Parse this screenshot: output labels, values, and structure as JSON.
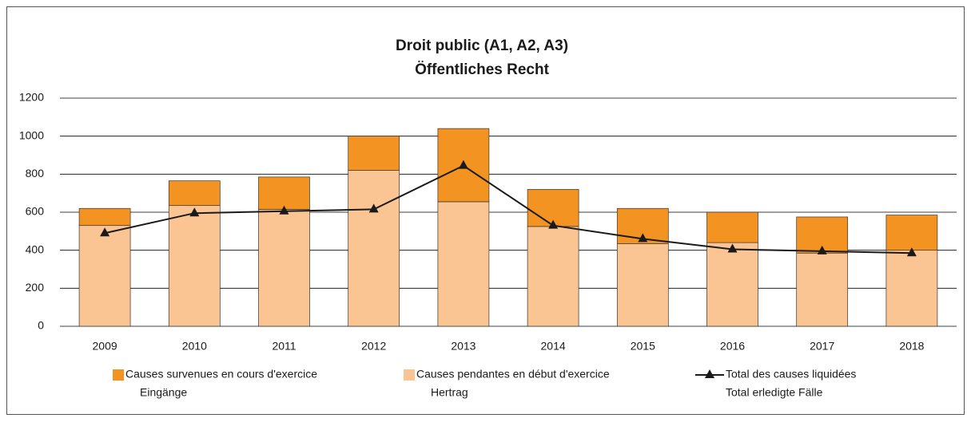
{
  "chart_data": {
    "type": "stacked-bar-line",
    "title": "Droit public (A1, A2, A3)",
    "subtitle": "Öffentliches Recht",
    "categories": [
      "2009",
      "2010",
      "2011",
      "2012",
      "2013",
      "2014",
      "2015",
      "2016",
      "2017",
      "2018"
    ],
    "series": [
      {
        "name": [
          "Causes survenues en cours d'exercice",
          "Eingänge"
        ],
        "color": "#f39322",
        "kind": "bar",
        "stack_order": 1,
        "values": [
          90,
          130,
          170,
          180,
          385,
          195,
          185,
          160,
          190,
          185
        ]
      },
      {
        "name": [
          "Causes pendantes en début d'exercice",
          "Hertrag"
        ],
        "color": "#fac592",
        "kind": "bar",
        "stack_order": 0,
        "values": [
          530,
          635,
          615,
          820,
          655,
          525,
          435,
          440,
          385,
          400
        ]
      },
      {
        "name": [
          "Total des causes liquidées",
          "Total erledigte Fälle"
        ],
        "color": "#1a1a1a",
        "kind": "line",
        "values": [
          490,
          595,
          605,
          615,
          845,
          530,
          460,
          405,
          395,
          385
        ]
      }
    ],
    "ylim": [
      0,
      1200
    ],
    "yticks": [
      0,
      200,
      400,
      600,
      800,
      1000,
      1200
    ],
    "grid": true
  }
}
